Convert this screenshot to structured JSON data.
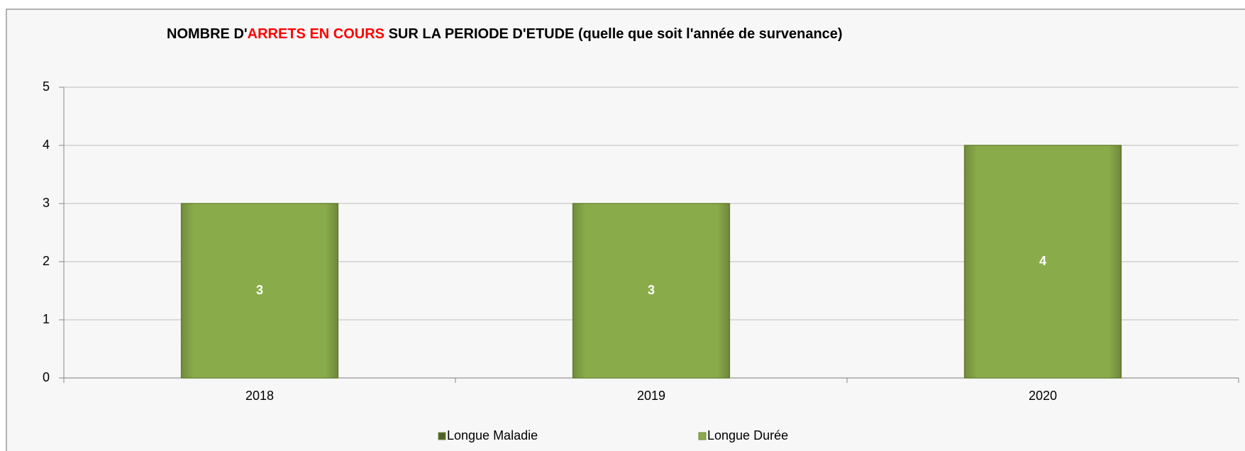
{
  "chart_data": {
    "type": "stacked_bar",
    "title": [
      "NOMBRE D'",
      "ARRETS EN COURS",
      " SUR LA PERIODE D'ETUDE (quelle que soit l'année de survenance)"
    ],
    "title_colors": [
      "#000000",
      "#ff0000",
      "#000000"
    ],
    "categories": [
      "2018",
      "2019",
      "2020"
    ],
    "series": [
      {
        "name": "Longue Maladie",
        "color": "#4f6228",
        "values": [
          0,
          0,
          0
        ]
      },
      {
        "name": "Longue Durée",
        "color": "#8aab4a",
        "values": [
          3,
          3,
          4
        ]
      }
    ],
    "ylim": [
      0,
      5
    ],
    "yticks": [
      0,
      1,
      2,
      3,
      4,
      5
    ],
    "grid": true,
    "legend": "bottom"
  }
}
